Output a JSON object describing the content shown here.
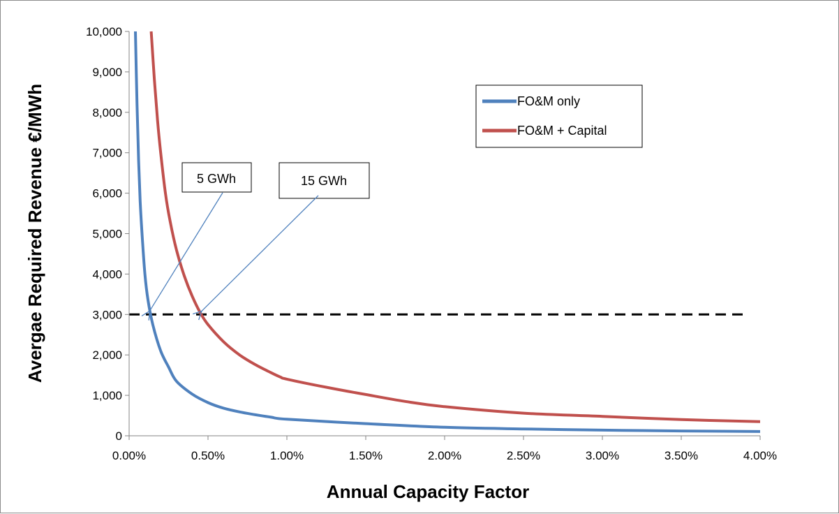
{
  "chart_data": {
    "type": "line",
    "xlabel": "Annual Capacity Factor",
    "ylabel": "Avergae Required Revenue €/MWh",
    "xlim": [
      0,
      4
    ],
    "ylim": [
      0,
      10000
    ],
    "x_ticks": [
      0,
      0.5,
      1,
      1.5,
      2,
      2.5,
      3,
      3.5,
      4
    ],
    "x_tick_labels": [
      "0.00%",
      "0.50%",
      "1.00%",
      "1.50%",
      "2.00%",
      "2.50%",
      "3.00%",
      "3.50%",
      "4.00%"
    ],
    "y_ticks": [
      0,
      1000,
      2000,
      3000,
      4000,
      5000,
      6000,
      7000,
      8000,
      9000,
      10000
    ],
    "y_tick_labels": [
      "0",
      "1,000",
      "2,000",
      "3,000",
      "4,000",
      "5,000",
      "6,000",
      "7,000",
      "8,000",
      "9,000",
      "10,000"
    ],
    "grid": false,
    "legend_position": "top-right",
    "series": [
      {
        "name": "FO&M only",
        "color": "#4f81bd",
        "x": [
          0.04,
          0.05,
          0.06,
          0.07,
          0.08,
          0.1,
          0.12,
          0.15,
          0.2,
          0.25,
          0.3,
          0.4,
          0.5,
          0.6,
          0.7,
          0.8,
          0.9,
          1.0,
          1.5,
          2.0,
          2.5,
          3.0,
          3.5,
          4.0
        ],
        "y": [
          10000,
          8200,
          6800,
          5800,
          5100,
          4000,
          3350,
          2750,
          2100,
          1700,
          1350,
          1030,
          820,
          680,
          590,
          520,
          460,
          410,
          300,
          210,
          170,
          140,
          120,
          105
        ]
      },
      {
        "name": "FO&M + Capital",
        "color": "#c0504d",
        "x": [
          0.14,
          0.16,
          0.18,
          0.2,
          0.23,
          0.26,
          0.3,
          0.35,
          0.4,
          0.45,
          0.5,
          0.6,
          0.7,
          0.8,
          0.9,
          0.96,
          1.0,
          1.25,
          1.5,
          1.75,
          2.0,
          2.5,
          3.0,
          3.5,
          4.0
        ],
        "y": [
          10000,
          8800,
          7800,
          7000,
          6000,
          5300,
          4600,
          3950,
          3450,
          3050,
          2750,
          2320,
          2000,
          1760,
          1560,
          1450,
          1400,
          1200,
          1020,
          850,
          720,
          560,
          480,
          400,
          350
        ]
      }
    ],
    "reference_line": {
      "y": 3000,
      "x_start": 0,
      "x_end": 3.9,
      "style": "dashed",
      "color": "#000000"
    },
    "annotations": [
      {
        "text": "5 GWh",
        "target_x": 0.13,
        "target_y": 3050
      },
      {
        "text": "15 GWh",
        "target_x": 0.46,
        "target_y": 3050
      }
    ]
  }
}
